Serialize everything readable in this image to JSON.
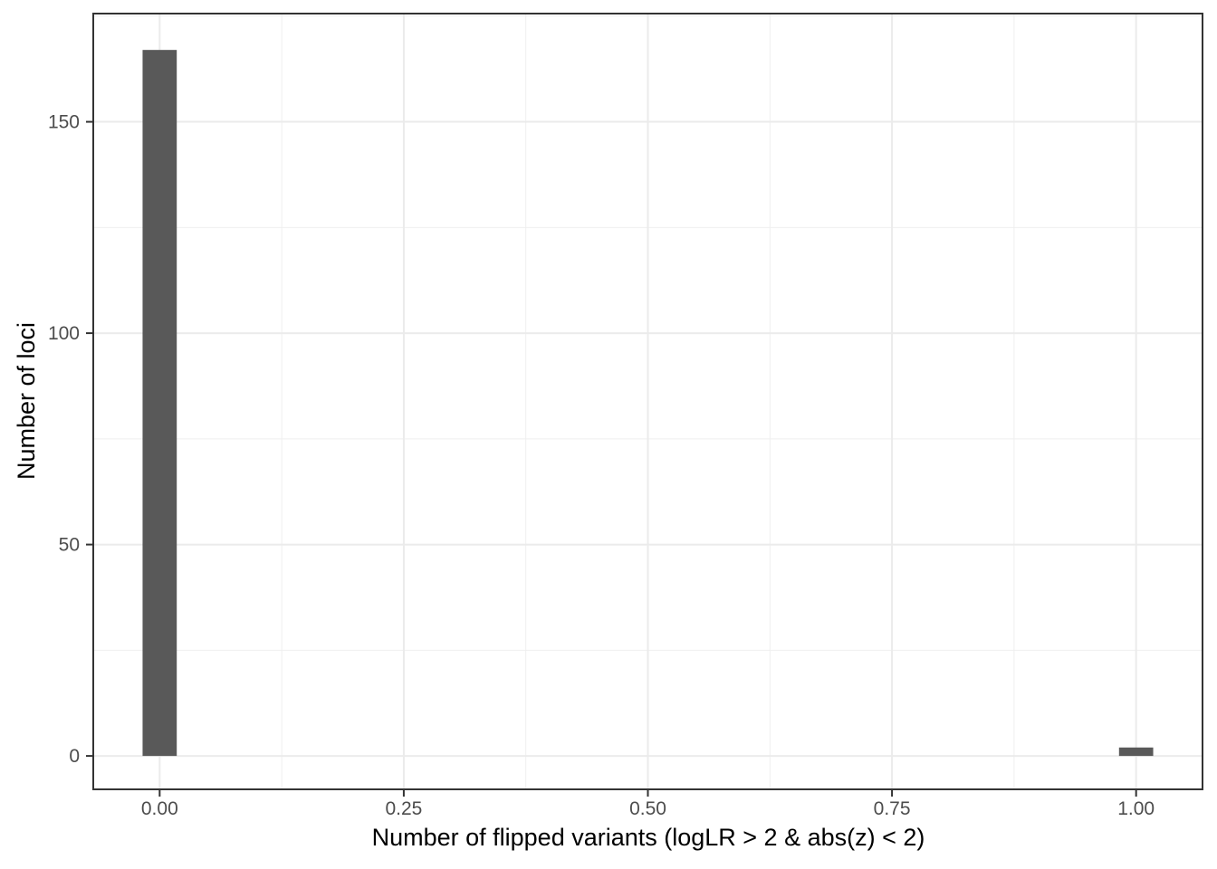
{
  "chart_data": {
    "type": "bar",
    "subtype": "histogram",
    "title": "",
    "xlabel": "Number of flipped variants (logLR > 2 & abs(z) < 2)",
    "ylabel": "Number of loci",
    "bars": [
      {
        "x": 0.0,
        "count": 167
      },
      {
        "x": 1.0,
        "count": 2
      }
    ],
    "binwidth": 0.035,
    "xlim": [
      -0.068,
      1.068
    ],
    "ylim": [
      -7.9,
      175.6
    ],
    "x_ticks": [
      {
        "value": 0.0,
        "label": "0.00"
      },
      {
        "value": 0.25,
        "label": "0.25"
      },
      {
        "value": 0.5,
        "label": "0.50"
      },
      {
        "value": 0.75,
        "label": "0.75"
      },
      {
        "value": 1.0,
        "label": "1.00"
      }
    ],
    "y_ticks": [
      {
        "value": 0,
        "label": "0"
      },
      {
        "value": 50,
        "label": "50"
      },
      {
        "value": 100,
        "label": "100"
      },
      {
        "value": 150,
        "label": "150"
      }
    ],
    "x_minor_gridlines": [
      0.125,
      0.375,
      0.625,
      0.875
    ],
    "y_minor_gridlines": [
      25,
      75,
      125,
      175
    ],
    "grid": "on",
    "legend": "none",
    "style": {
      "bar_fill": "#595959",
      "grid_major": "#EBEBEB",
      "grid_minor": "#EFEFEF",
      "panel_border": "#333333",
      "tick_mark": "#333333",
      "tick_label_color": "#4D4D4D",
      "axis_title_color": "#000000",
      "background": "#FFFFFF"
    }
  }
}
